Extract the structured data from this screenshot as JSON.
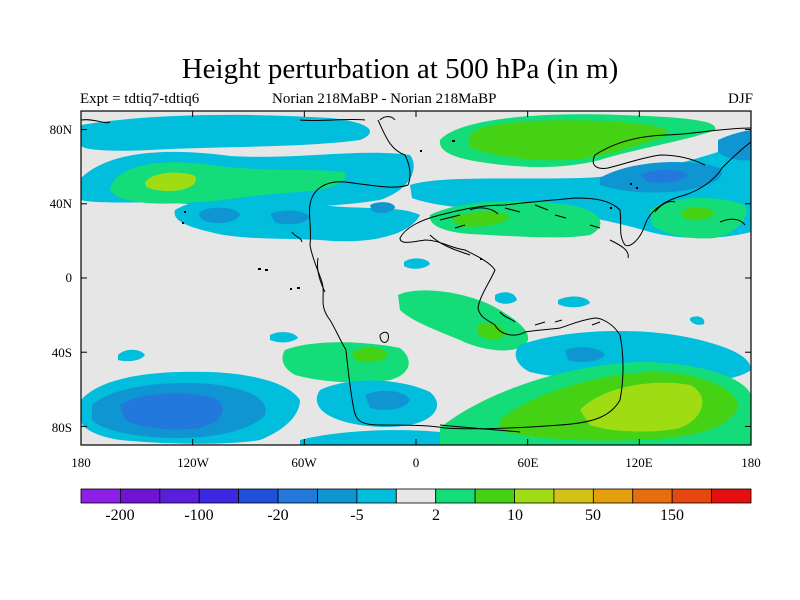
{
  "title": "Height perturbation at 500 hPa (in m)",
  "subtitle_left": "Expt = tdtiq7-tdtiq6",
  "subtitle_center": "Norian   218MaBP - Norian   218MaBP",
  "subtitle_right": "DJF",
  "y_ticks": [
    "80N",
    "40N",
    "0",
    "40S",
    "80S"
  ],
  "x_ticks": [
    "180",
    "120W",
    "60W",
    "0",
    "60E",
    "120E",
    "180"
  ],
  "colorbar": {
    "colors": [
      "#8c1ee6",
      "#6e14d2",
      "#5a1edc",
      "#3c28e1",
      "#1e50dc",
      "#2378dc",
      "#0f96d2",
      "#00bedc",
      "#e6e6e6",
      "#14dc78",
      "#46d214",
      "#a0dc14",
      "#d2c314",
      "#e6a00f",
      "#e66e0f",
      "#e6460f",
      "#e60f0f"
    ],
    "labels": [
      "-200",
      "-100",
      "-20",
      "-5",
      "2",
      "10",
      "50",
      "150"
    ]
  },
  "background_color": "#e6e6e6",
  "chart_data": {
    "type": "heatmap",
    "variable": "Height perturbation at 500 hPa",
    "units": "m",
    "season": "DJF",
    "xlim": [
      -180,
      180
    ],
    "ylim": [
      -90,
      90
    ],
    "x_tick_values": [
      -180,
      -120,
      -60,
      0,
      60,
      120,
      180
    ],
    "y_tick_values": [
      80,
      40,
      0,
      -40,
      -80
    ],
    "approx_features": [
      {
        "region": "north Pacific 60N 130W",
        "level": "10"
      },
      {
        "region": "north Pacific band 55N 180-60W",
        "level": "-5"
      },
      {
        "region": "north Atlantic / Europe 75N 45E",
        "level": "10"
      },
      {
        "region": "Asia 50N 140E",
        "level": "-20"
      },
      {
        "region": "Tethys 38N 60E",
        "level": "2"
      },
      {
        "region": "south Pacific 70S 130W",
        "level": "-20"
      },
      {
        "region": "Antarctic high 70S 125E",
        "level": "50"
      },
      {
        "region": "south Atlantic 40S 20W",
        "level": "10"
      },
      {
        "region": "south Indian 50S 100E",
        "level": "-5"
      }
    ]
  }
}
